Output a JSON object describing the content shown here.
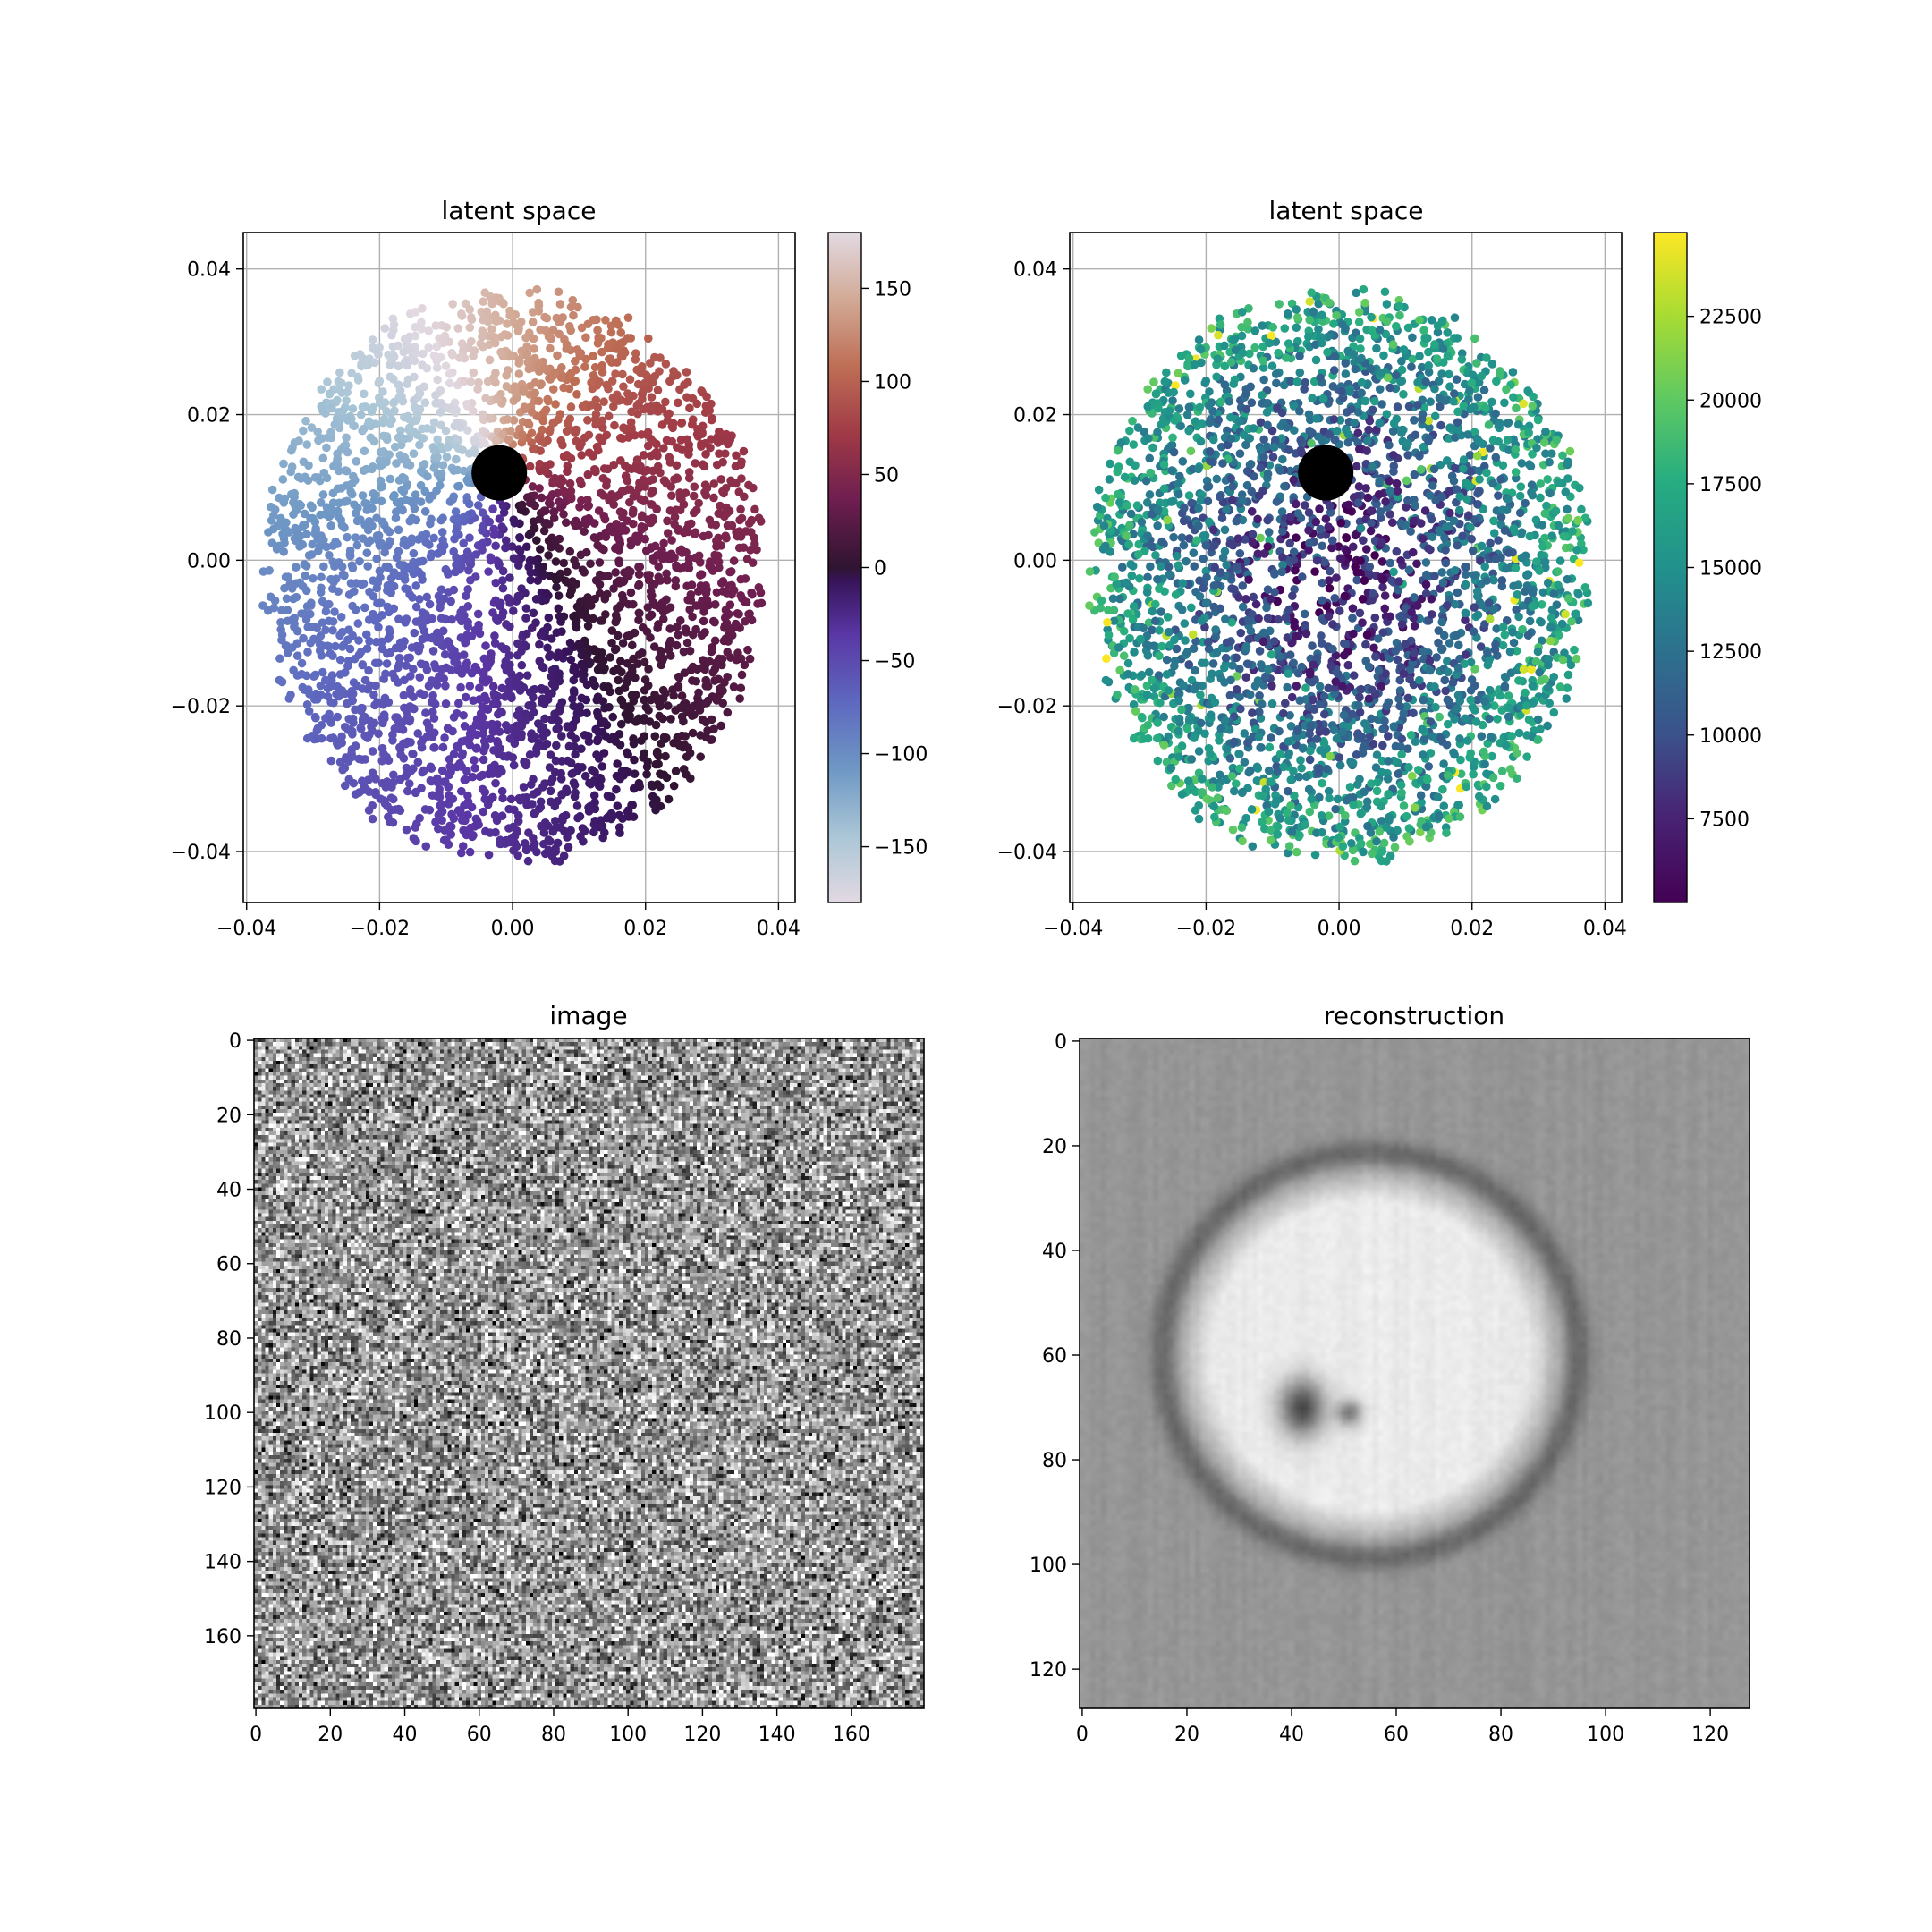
{
  "chart_data": [
    {
      "type": "scatter",
      "title": "latent space",
      "xlabel": "",
      "ylabel": "",
      "xlim": [
        -0.0405,
        0.0425
      ],
      "ylim": [
        -0.047,
        0.045
      ],
      "xticks": [
        -0.04,
        -0.02,
        0.0,
        0.02,
        0.04
      ],
      "yticks": [
        -0.04,
        -0.02,
        0.0,
        0.02,
        0.04
      ],
      "xtick_labels": [
        "−0.04",
        "−0.02",
        "0.00",
        "0.02",
        "0.04"
      ],
      "ytick_labels": [
        "−0.04",
        "−0.02",
        "0.00",
        "0.02",
        "0.04"
      ],
      "grid": true,
      "colormap": "twilight",
      "color_encoding": "angle of point (degrees) about the highlighted point",
      "point_cloud": {
        "center": [
          0.0,
          -0.002
        ],
        "radius_x": 0.037,
        "radius_y": 0.039,
        "count": 3200
      },
      "highlight_point": {
        "x": -0.002,
        "y": 0.012,
        "color": "#000000"
      },
      "colorbar": {
        "range": [
          -180,
          180
        ],
        "ticks": [
          150,
          100,
          50,
          0,
          -50,
          -100,
          -150
        ],
        "tick_labels": [
          "150",
          "100",
          "50",
          "0",
          "−50",
          "−100",
          "−150"
        ]
      }
    },
    {
      "type": "scatter",
      "title": "latent space",
      "xlabel": "",
      "ylabel": "",
      "xlim": [
        -0.0405,
        0.0425
      ],
      "ylim": [
        -0.047,
        0.045
      ],
      "xticks": [
        -0.04,
        -0.02,
        0.0,
        0.02,
        0.04
      ],
      "yticks": [
        -0.04,
        -0.02,
        0.0,
        0.02,
        0.04
      ],
      "xtick_labels": [
        "−0.04",
        "−0.02",
        "0.00",
        "0.02",
        "0.04"
      ],
      "ytick_labels": [
        "−0.04",
        "−0.02",
        "0.00",
        "0.02",
        "0.04"
      ],
      "grid": true,
      "colormap": "viridis",
      "color_encoding": "value grows with distance from centre of cloud",
      "point_cloud": {
        "center": [
          0.0,
          -0.002
        ],
        "radius_x": 0.037,
        "radius_y": 0.039,
        "count": 3200
      },
      "highlight_point": {
        "x": -0.002,
        "y": 0.012,
        "color": "#000000"
      },
      "colorbar": {
        "range": [
          5000,
          25000
        ],
        "ticks": [
          22500,
          20000,
          17500,
          15000,
          12500,
          10000,
          7500
        ],
        "tick_labels": [
          "22500",
          "20000",
          "17500",
          "15000",
          "12500",
          "10000",
          "7500"
        ]
      }
    },
    {
      "type": "heatmap",
      "title": "image",
      "colormap": "gray",
      "size": [
        180,
        180
      ],
      "extent": [
        -0.5,
        179.5
      ],
      "xticks": [
        0,
        20,
        40,
        60,
        80,
        100,
        120,
        140,
        160
      ],
      "yticks": [
        0,
        20,
        40,
        60,
        80,
        100,
        120,
        140,
        160
      ],
      "content": "random noise"
    },
    {
      "type": "heatmap",
      "title": "reconstruction",
      "colormap": "gray",
      "size": [
        128,
        128
      ],
      "extent": [
        -0.5,
        127.5
      ],
      "xticks": [
        0,
        20,
        40,
        60,
        80,
        100,
        120
      ],
      "yticks": [
        0,
        20,
        40,
        60,
        80,
        100,
        120
      ],
      "content": "bright disc centred near (55, 60) with dark blob near (43, 70)"
    }
  ]
}
